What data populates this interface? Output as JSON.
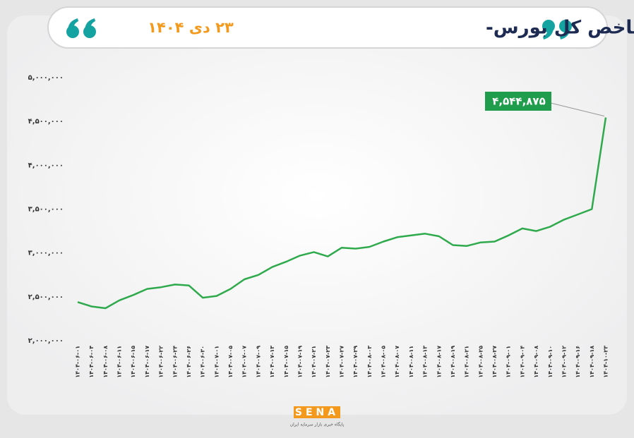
{
  "chart_data": {
    "type": "line",
    "title": "روند شاخص کل بورس-",
    "subtitle": "۲۳ دی ۱۴۰۴",
    "categories": [
      "۱۴۰۴-۰۶-۰۱",
      "۱۴۰۴-۰۶-۰۴",
      "۱۴۰۴-۰۶-۰۸",
      "۱۴۰۴-۰۶-۱۱",
      "۱۴۰۴-۰۶-۱۵",
      "۱۴۰۴-۰۶-۱۷",
      "۱۴۰۴-۰۶-۲۲",
      "۱۴۰۴-۰۶-۲۴",
      "۱۴۰۴-۰۶-۲۶",
      "۱۴۰۴-۰۶-۳۰",
      "۱۴۰۴-۰۷-۰۱",
      "۱۴۰۴-۰۷-۰۵",
      "۱۴۰۴-۰۷-۰۷",
      "۱۴۰۴-۰۷-۰۹",
      "۱۴۰۴-۰۷-۱۳",
      "۱۴۰۴-۰۷-۱۵",
      "۱۴۰۴-۰۷-۱۹",
      "۱۴۰۴-۰۷-۲۱",
      "۱۴۰۴-۰۷-۲۳",
      "۱۴۰۴-۰۷-۲۷",
      "۱۴۰۴-۰۷-۲۹",
      "۱۴۰۴-۰۸-۰۳",
      "۱۴۰۴-۰۸-۰۵",
      "۱۴۰۴-۰۸-۰۷",
      "۱۴۰۴-۰۸-۱۱",
      "۱۴۰۴-۰۸-۱۳",
      "۱۴۰۴-۰۸-۱۷",
      "۱۴۰۴-۰۸-۱۹",
      "۱۴۰۴-۰۸-۲۱",
      "۱۴۰۴-۰۸-۲۵",
      "۱۴۰۴-۰۸-۲۷",
      "۱۴۰۴-۰۹-۰۱",
      "۱۴۰۴-۰۹-۰۴",
      "۱۴۰۴-۰۹-۰۸",
      "۱۴۰۴-۰۹-۱۰",
      "۱۴۰۴-۰۹-۱۲",
      "۱۴۰۴-۰۹-۱۶",
      "۱۴۰۴-۰۹-۱۸",
      "۱۴۰۴-۱۰-۲۳"
    ],
    "values": [
      2440000,
      2390000,
      2370000,
      2460000,
      2520000,
      2590000,
      2610000,
      2640000,
      2630000,
      2490000,
      2510000,
      2590000,
      2700000,
      2750000,
      2840000,
      2900000,
      2970000,
      3010000,
      2960000,
      3060000,
      3050000,
      3070000,
      3130000,
      3180000,
      3200000,
      3220000,
      3190000,
      3090000,
      3080000,
      3120000,
      3130000,
      3200000,
      3280000,
      3250000,
      3300000,
      3380000,
      3440000,
      3500000,
      4544875
    ],
    "value_labels": [
      null,
      null,
      null,
      null,
      null,
      null,
      null,
      null,
      null,
      null,
      null,
      null,
      null,
      null,
      null,
      null,
      null,
      null,
      null,
      null,
      null,
      null,
      null,
      null,
      null,
      null,
      null,
      null,
      null,
      null,
      null,
      null,
      null,
      null,
      null,
      null,
      null,
      null,
      "۴,۵۴۴,۸۷۵"
    ],
    "color": "#2eaa4c",
    "ylim": [
      2000000,
      5000000
    ],
    "yticks": [
      {
        "value": 2000000,
        "label": "۲,۰۰۰,۰۰۰"
      },
      {
        "value": 2500000,
        "label": "۲,۵۰۰,۰۰۰"
      },
      {
        "value": 3000000,
        "label": "۳,۰۰۰,۰۰۰"
      },
      {
        "value": 3500000,
        "label": "۳,۵۰۰,۰۰۰"
      },
      {
        "value": 4000000,
        "label": "۴,۰۰۰,۰۰۰"
      },
      {
        "value": 4500000,
        "label": "۴,۵۰۰,۰۰۰"
      },
      {
        "value": 5000000,
        "label": "۵,۰۰۰,۰۰۰"
      }
    ],
    "grid": false
  },
  "logo": {
    "name": "SENA",
    "tagline": "پایگاه خبری بازار سرمایه ایران"
  }
}
